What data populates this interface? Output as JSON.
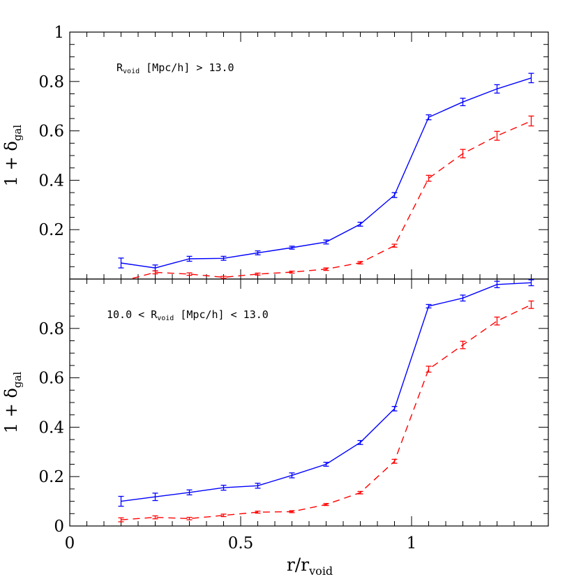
{
  "chart_data": {
    "type": "line",
    "shared_x": {
      "label_main": "r/r",
      "label_sub": "void",
      "range": [
        0,
        1.4
      ],
      "ticks": [
        {
          "value": 0,
          "label": "0"
        },
        {
          "value": 0.5,
          "label": "0.5"
        },
        {
          "value": 1,
          "label": "1"
        }
      ]
    },
    "colors": {
      "blue": "#0000ff",
      "red": "#ff0000"
    },
    "panels": [
      {
        "id": "top",
        "annotation_parts": [
          "R",
          "void",
          " [Mpc/h] > 13.0"
        ],
        "ylabel_main": "1 + δ",
        "ylabel_sub": "gal",
        "ylim": [
          0,
          1
        ],
        "yticks": [
          {
            "value": 0.2,
            "label": "0.2"
          },
          {
            "value": 0.4,
            "label": "0.4"
          },
          {
            "value": 0.6,
            "label": "0.6"
          },
          {
            "value": 0.8,
            "label": "0.8"
          },
          {
            "value": 1,
            "label": "1"
          }
        ],
        "series": [
          {
            "color": "blue",
            "dash": false,
            "x": [
              0.15,
              0.25,
              0.35,
              0.45,
              0.55,
              0.65,
              0.75,
              0.85,
              0.95,
              1.05,
              1.15,
              1.25,
              1.35
            ],
            "y": [
              0.065,
              0.045,
              0.082,
              0.084,
              0.106,
              0.127,
              0.15,
              0.222,
              0.34,
              0.655,
              0.717,
              0.77,
              0.814
            ],
            "err": [
              0.02,
              0.012,
              0.01,
              0.008,
              0.008,
              0.006,
              0.008,
              0.008,
              0.01,
              0.01,
              0.015,
              0.017,
              0.019
            ]
          },
          {
            "color": "red",
            "dash": true,
            "x": [
              0.15,
              0.25,
              0.35,
              0.45,
              0.55,
              0.65,
              0.75,
              0.85,
              0.95,
              1.05,
              1.15,
              1.25,
              1.35
            ],
            "y": [
              -0.01,
              0.027,
              0.02,
              0.007,
              0.02,
              0.028,
              0.04,
              0.066,
              0.135,
              0.408,
              0.508,
              0.58,
              0.64
            ],
            "err": [
              0.004,
              0.006,
              0.005,
              0.004,
              0.004,
              0.004,
              0.005,
              0.005,
              0.006,
              0.012,
              0.017,
              0.018,
              0.02
            ]
          }
        ]
      },
      {
        "id": "bottom",
        "annotation_parts": [
          "10.0 < R",
          "void",
          " [Mpc/h] < 13.0"
        ],
        "ylabel_main": "1 + δ",
        "ylabel_sub": "gal",
        "ylim": [
          0,
          1
        ],
        "yticks": [
          {
            "value": 0,
            "label": "0"
          },
          {
            "value": 0.2,
            "label": "0.2"
          },
          {
            "value": 0.4,
            "label": "0.4"
          },
          {
            "value": 0.6,
            "label": "0.6"
          },
          {
            "value": 0.8,
            "label": "0.8"
          }
        ],
        "series": [
          {
            "color": "blue",
            "dash": false,
            "x": [
              0.15,
              0.25,
              0.35,
              0.45,
              0.55,
              0.65,
              0.75,
              0.85,
              0.95,
              1.05,
              1.15,
              1.25,
              1.35
            ],
            "y": [
              0.1,
              0.118,
              0.136,
              0.155,
              0.163,
              0.205,
              0.25,
              0.338,
              0.475,
              0.89,
              0.923,
              0.978,
              0.985
            ],
            "err": [
              0.02,
              0.015,
              0.01,
              0.01,
              0.01,
              0.01,
              0.008,
              0.008,
              0.009,
              0.007,
              0.012,
              0.013,
              0.012
            ]
          },
          {
            "color": "red",
            "dash": true,
            "x": [
              0.15,
              0.25,
              0.35,
              0.45,
              0.55,
              0.65,
              0.75,
              0.85,
              0.95,
              1.05,
              1.15,
              1.25,
              1.35
            ],
            "y": [
              0.025,
              0.035,
              0.03,
              0.043,
              0.056,
              0.058,
              0.087,
              0.135,
              0.262,
              0.635,
              0.733,
              0.83,
              0.896
            ],
            "err": [
              0.008,
              0.006,
              0.005,
              0.005,
              0.004,
              0.004,
              0.004,
              0.005,
              0.008,
              0.012,
              0.015,
              0.016,
              0.015
            ]
          }
        ]
      }
    ]
  }
}
